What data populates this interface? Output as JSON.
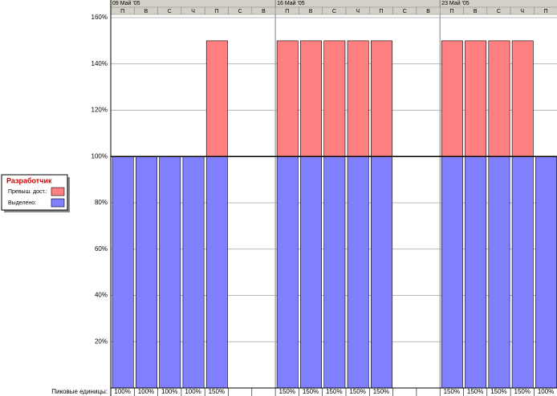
{
  "chart_data": {
    "type": "stacked-bar",
    "weeks": [
      "09 Май '05",
      "16 Май '05",
      "23 Май '05"
    ],
    "categories": [
      "П",
      "В",
      "С",
      "Ч",
      "П",
      "С",
      "В",
      "П",
      "В",
      "С",
      "Ч",
      "П",
      "С",
      "В",
      "П",
      "В",
      "С",
      "Ч",
      "П"
    ],
    "series": [
      {
        "name": "Выделено:",
        "color": "#8080ff",
        "values": [
          100,
          100,
          100,
          100,
          100,
          null,
          null,
          100,
          100,
          100,
          100,
          100,
          null,
          null,
          100,
          100,
          100,
          100,
          100
        ]
      },
      {
        "name": "Превыш. дост.:",
        "color": "#ff8080",
        "values": [
          0,
          0,
          0,
          0,
          50,
          null,
          null,
          50,
          50,
          50,
          50,
          50,
          null,
          null,
          50,
          50,
          50,
          50,
          0
        ]
      }
    ],
    "legend_title": "Разработчик",
    "ylim": [
      0,
      160
    ],
    "yticks": [
      {
        "value": 20,
        "label": "20%"
      },
      {
        "value": 40,
        "label": "40%"
      },
      {
        "value": 60,
        "label": "60%"
      },
      {
        "value": 80,
        "label": "80%"
      },
      {
        "value": 100,
        "label": "100%"
      },
      {
        "value": 120,
        "label": "120%"
      },
      {
        "value": 140,
        "label": "140%"
      },
      {
        "value": 160,
        "label": "160%"
      }
    ],
    "max_units": 100,
    "grid": true,
    "peak_label": "Пиковые единицы:",
    "peak_values": [
      100,
      100,
      100,
      100,
      150,
      null,
      null,
      150,
      150,
      150,
      150,
      150,
      null,
      null,
      150,
      150,
      150,
      150,
      100
    ],
    "peak_value_labels": [
      "100%",
      "100%",
      "100%",
      "100%",
      "150%",
      null,
      null,
      "150%",
      "150%",
      "150%",
      "150%",
      "150%",
      null,
      null,
      "150%",
      "150%",
      "150%",
      "150%",
      "100%"
    ]
  }
}
